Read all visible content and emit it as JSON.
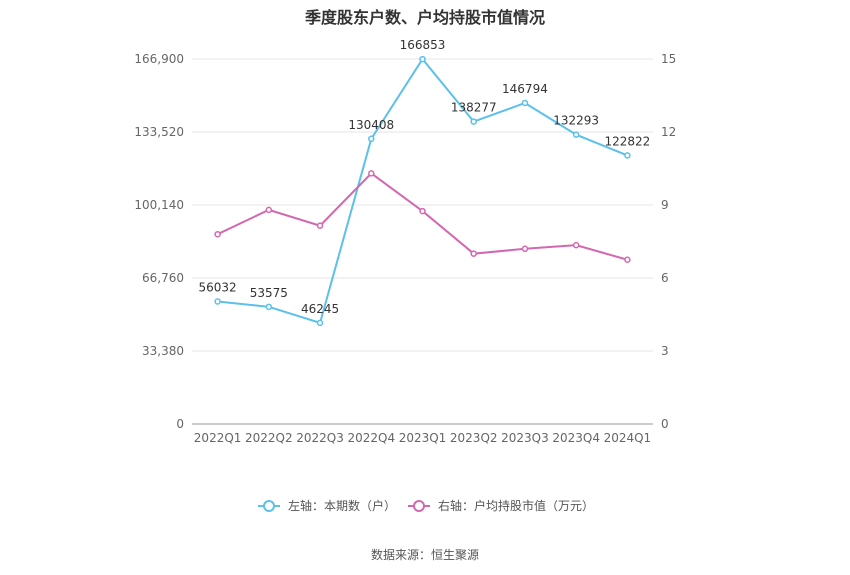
{
  "chart_data": {
    "type": "line",
    "title": "季度股东户数、户均持股市值情况",
    "categories": [
      "2022Q1",
      "2022Q2",
      "2022Q3",
      "2022Q4",
      "2023Q1",
      "2023Q2",
      "2023Q3",
      "2023Q4",
      "2024Q1"
    ],
    "left_axis": {
      "ticks": [
        "0",
        "33,380",
        "66,760",
        "100,140",
        "133,520",
        "166,900"
      ],
      "ylim": [
        0,
        166900
      ]
    },
    "right_axis": {
      "ticks": [
        "0",
        "3",
        "6",
        "9",
        "12",
        "15"
      ],
      "ylim": [
        0,
        15
      ]
    },
    "series": [
      {
        "name": "左轴：本期数（户）",
        "axis": "left",
        "color": "#5bc0eb",
        "values": [
          56032,
          53575,
          46245,
          130408,
          166853,
          138277,
          146794,
          132293,
          122822
        ],
        "labels": [
          "56032",
          "53575",
          "46245",
          "130408",
          "166853",
          "138277",
          "146794",
          "132293",
          "122822"
        ]
      },
      {
        "name": "右轴：户均持股市值（万元）",
        "axis": "right",
        "color": "#d468b0",
        "values": [
          7.8,
          8.8,
          8.15,
          10.3,
          8.75,
          7.0,
          7.2,
          7.35,
          6.75
        ]
      }
    ],
    "grid": true,
    "legend": "bottom-center"
  },
  "source": "数据来源：恒生聚源"
}
